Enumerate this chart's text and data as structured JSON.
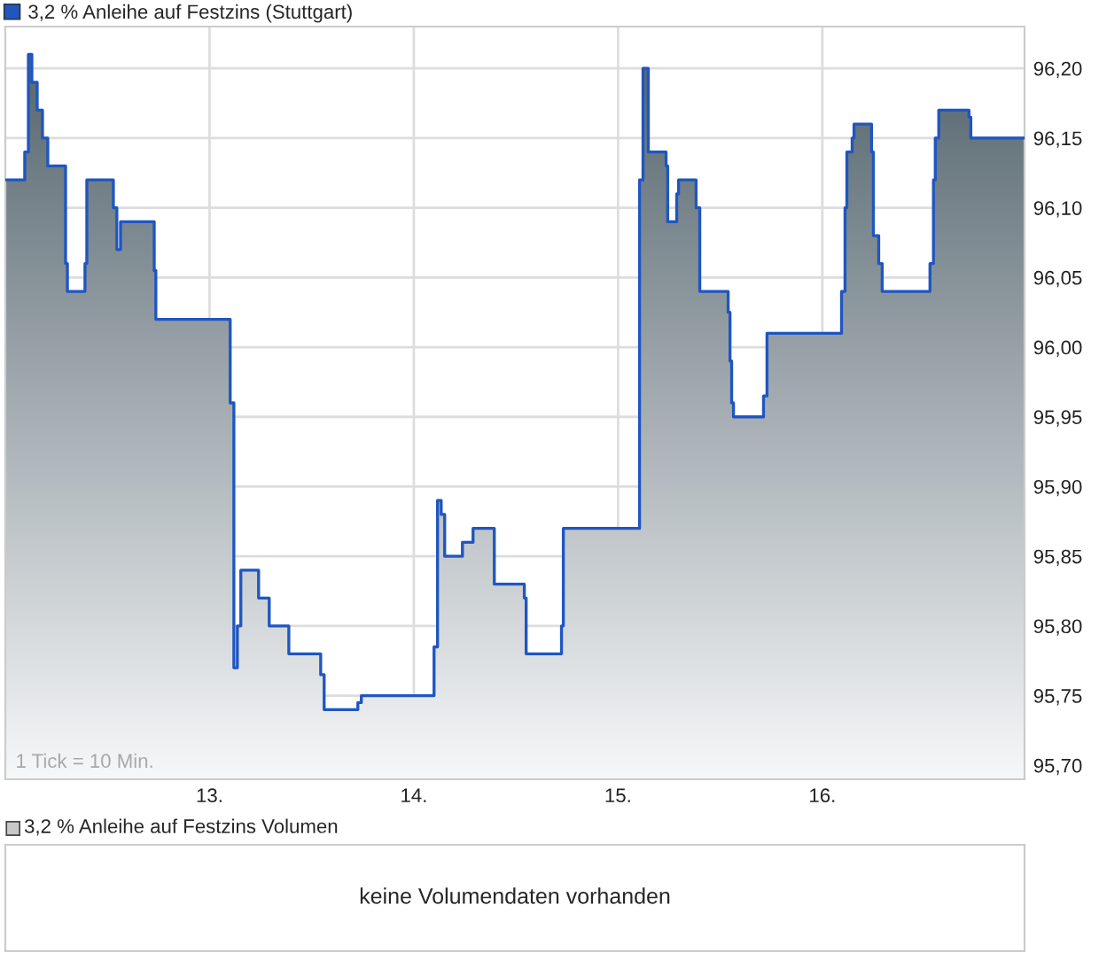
{
  "chart_data": [
    {
      "type": "step",
      "legend": "top left",
      "grid": true,
      "xlim": [
        12,
        16.99
      ],
      "xticks": [
        {
          "value": 13,
          "label": "13."
        },
        {
          "value": 14,
          "label": "14."
        },
        {
          "value": 15,
          "label": "15."
        },
        {
          "value": 16,
          "label": "16."
        }
      ],
      "ylim": [
        95.69,
        96.23
      ],
      "yticks": [
        {
          "value": 95.7,
          "label": "95,70"
        },
        {
          "value": 95.75,
          "label": "95,75"
        },
        {
          "value": 95.8,
          "label": "95,80"
        },
        {
          "value": 95.85,
          "label": "95,85"
        },
        {
          "value": 95.9,
          "label": "95,90"
        },
        {
          "value": 95.95,
          "label": "95,95"
        },
        {
          "value": 96.0,
          "label": "96,00"
        },
        {
          "value": 96.05,
          "label": "96,05"
        },
        {
          "value": 96.1,
          "label": "96,10"
        },
        {
          "value": 96.15,
          "label": "96,15"
        },
        {
          "value": 96.2,
          "label": "96,20"
        }
      ],
      "annotations": [
        "1 Tick = 10 Min."
      ],
      "series": [
        {
          "name": "3,2 % Anleihe auf Festzins (Stuttgart)",
          "color": "#1f56c0",
          "x": [
            12.0,
            12.095,
            12.113,
            12.13,
            12.156,
            12.182,
            12.208,
            12.295,
            12.304,
            12.39,
            12.399,
            12.529,
            12.546,
            12.564,
            12.729,
            12.737,
            13.101,
            13.119,
            13.136,
            13.153,
            13.24,
            13.292,
            13.388,
            13.544,
            13.561,
            13.726,
            13.743,
            14.099,
            14.116,
            14.134,
            14.151,
            14.238,
            14.29,
            14.394,
            14.541,
            14.55,
            14.723,
            14.732,
            15.105,
            15.122,
            15.148,
            15.235,
            15.243,
            15.287,
            15.296,
            15.382,
            15.4,
            15.539,
            15.548,
            15.556,
            15.565,
            15.712,
            15.729,
            16.094,
            16.111,
            16.12,
            16.146,
            16.155,
            16.241,
            16.25,
            16.276,
            16.293,
            16.527,
            16.544,
            16.553,
            16.57,
            16.718,
            16.727,
            16.99
          ],
          "values": [
            96.12,
            96.14,
            96.21,
            96.19,
            96.17,
            96.15,
            96.13,
            96.06,
            96.04,
            96.06,
            96.12,
            96.1,
            96.07,
            96.09,
            96.055,
            96.02,
            95.96,
            95.77,
            95.8,
            95.84,
            95.82,
            95.8,
            95.78,
            95.765,
            95.74,
            95.745,
            95.75,
            95.785,
            95.89,
            95.88,
            95.85,
            95.86,
            95.87,
            95.83,
            95.82,
            95.78,
            95.8,
            95.87,
            96.12,
            96.2,
            96.14,
            96.13,
            96.09,
            96.11,
            96.12,
            96.1,
            96.04,
            96.025,
            95.99,
            95.96,
            95.95,
            95.965,
            96.01,
            96.04,
            96.1,
            96.14,
            96.15,
            96.16,
            96.14,
            96.08,
            96.06,
            96.04,
            96.06,
            96.12,
            96.15,
            96.17,
            96.165,
            96.15,
            96.15
          ]
        }
      ]
    },
    {
      "type": "other",
      "title": "3,2 % Anleihe auf Festzins Volumen",
      "annotations": [
        "keine Volumendaten vorhanden"
      ]
    }
  ]
}
